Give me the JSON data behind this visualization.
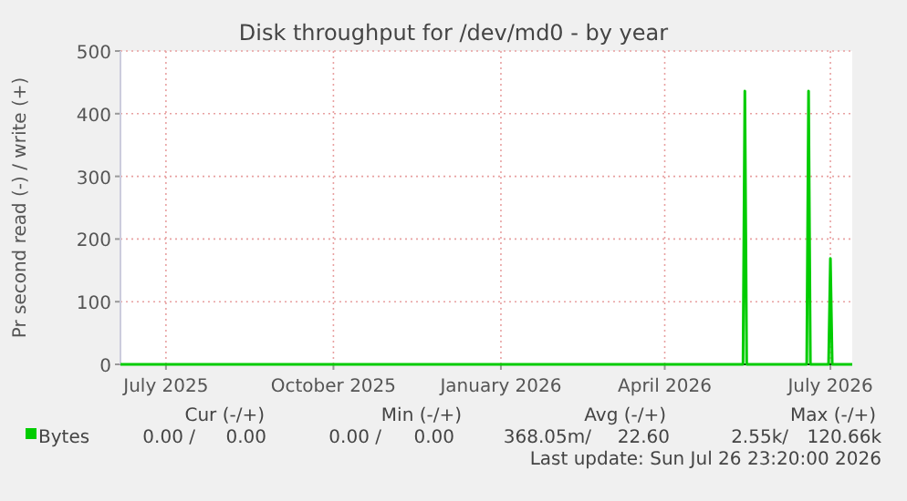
{
  "chart_data": {
    "type": "line",
    "title": "Disk throughput for /dev/md0 - by year",
    "ylabel": "Pr second read (-) / write (+)",
    "series": [
      {
        "name": "Bytes",
        "color": "#00cc00",
        "x": [
          "2025-06-06",
          "2026-05-14",
          "2026-05-15",
          "2026-05-16",
          "2026-06-18",
          "2026-06-19",
          "2026-06-20",
          "2026-06-30",
          "2026-07-01",
          "2026-07-02",
          "2026-07-13"
        ],
        "values": [
          0,
          0,
          436,
          0,
          0,
          436,
          0,
          0,
          169,
          0,
          0
        ]
      }
    ],
    "xlim": [
      "2025-06-06",
      "2026-07-13"
    ],
    "xticks": [
      {
        "value": "2025-07-01",
        "label": "July 2025"
      },
      {
        "value": "2025-10-01",
        "label": "October 2025"
      },
      {
        "value": "2026-01-01",
        "label": "January 2026"
      },
      {
        "value": "2026-04-01",
        "label": "April 2026"
      },
      {
        "value": "2026-07-01",
        "label": "July 2026"
      }
    ],
    "ylim": [
      0,
      500
    ],
    "yticks": [
      0,
      100,
      200,
      300,
      400,
      500
    ],
    "grid": true,
    "legend": "bottom",
    "marker": "none",
    "line_style": "solid",
    "annotations": [
      "Cur (-/+)",
      "Min (-/+)",
      "Avg (-/+)",
      "Max (-/+)",
      "0.00 /",
      "0.00",
      "0.00 /",
      "0.00",
      "368.05m/",
      "22.60",
      "2.55k/",
      "120.66k",
      "Last update: Sun Jul 26 23:20:00 2026"
    ]
  }
}
